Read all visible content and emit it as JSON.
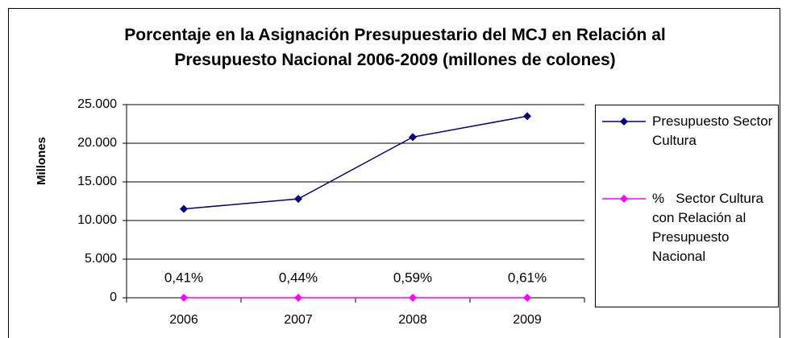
{
  "chart_data": {
    "type": "line",
    "title": "Porcentaje en la Asignación Presupuestario del MCJ en Relación al Presupuesto Nacional  2006-2009 (millones de colones)",
    "y_label": "Millones",
    "categories": [
      "2006",
      "2007",
      "2008",
      "2009"
    ],
    "series": [
      {
        "name": "Presupuesto Sector Cultura",
        "color": "#000080",
        "values": [
          11500,
          12800,
          20800,
          23500
        ]
      },
      {
        "name": "%   Sector Cultura con Relación al Presupuesto Nacional",
        "color": "#ff00ff",
        "values": [
          0.41,
          0.44,
          0.59,
          0.61
        ],
        "value_labels": [
          "0,41%",
          "0,44%",
          "0,59%",
          "0,61%"
        ]
      }
    ],
    "ylim": [
      0,
      25000
    ],
    "yticks": [
      0,
      {
        "value": 5000,
        "label": "5.000"
      },
      {
        "value": 10000,
        "label": "10.000"
      },
      {
        "value": 15000,
        "label": "15.000"
      },
      {
        "value": 20000,
        "label": "20.000"
      },
      {
        "value": 25000,
        "label": "25.000"
      }
    ],
    "grid": true,
    "legend": "right"
  }
}
